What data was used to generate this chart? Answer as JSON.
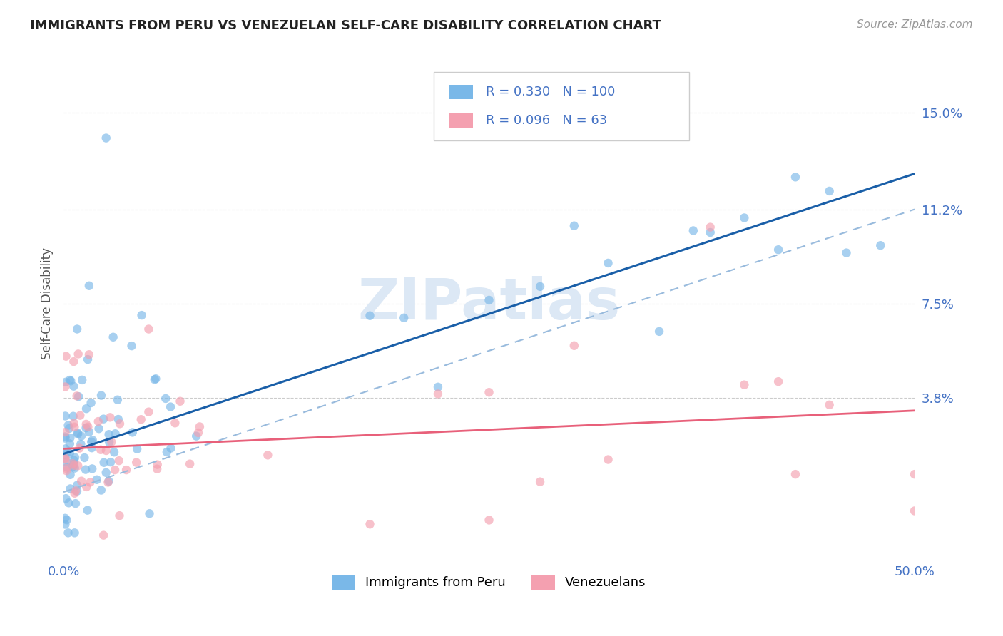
{
  "title": "IMMIGRANTS FROM PERU VS VENEZUELAN SELF-CARE DISABILITY CORRELATION CHART",
  "source": "Source: ZipAtlas.com",
  "ylabel": "Self-Care Disability",
  "xlim": [
    0.0,
    0.5
  ],
  "ylim": [
    -0.025,
    0.175
  ],
  "ytick_positions": [
    0.038,
    0.075,
    0.112,
    0.15
  ],
  "ytick_labels": [
    "3.8%",
    "7.5%",
    "11.2%",
    "15.0%"
  ],
  "xtick_positions": [
    0.0,
    0.5
  ],
  "xtick_labels": [
    "0.0%",
    "50.0%"
  ],
  "peru_R": 0.33,
  "peru_N": 100,
  "venezuela_R": 0.096,
  "venezuela_N": 63,
  "peru_color": "#7ab8e8",
  "venezuela_color": "#f4a0b0",
  "trend_peru_color": "#1a5fa8",
  "trend_venezuela_color": "#e8607a",
  "trend_dashed_color": "#99bbdd",
  "grid_color": "#cccccc",
  "background_color": "#ffffff",
  "title_color": "#222222",
  "source_color": "#999999",
  "tick_color": "#4472C4",
  "ylabel_color": "#555555",
  "watermark_color": "#dce8f5",
  "legend_box_edge": "#cccccc",
  "peru_trend_intercept": 0.016,
  "peru_trend_slope": 0.22,
  "ven_trend_intercept": 0.018,
  "ven_trend_slope": 0.03,
  "dashed_intercept": 0.001,
  "dashed_slope": 0.222
}
